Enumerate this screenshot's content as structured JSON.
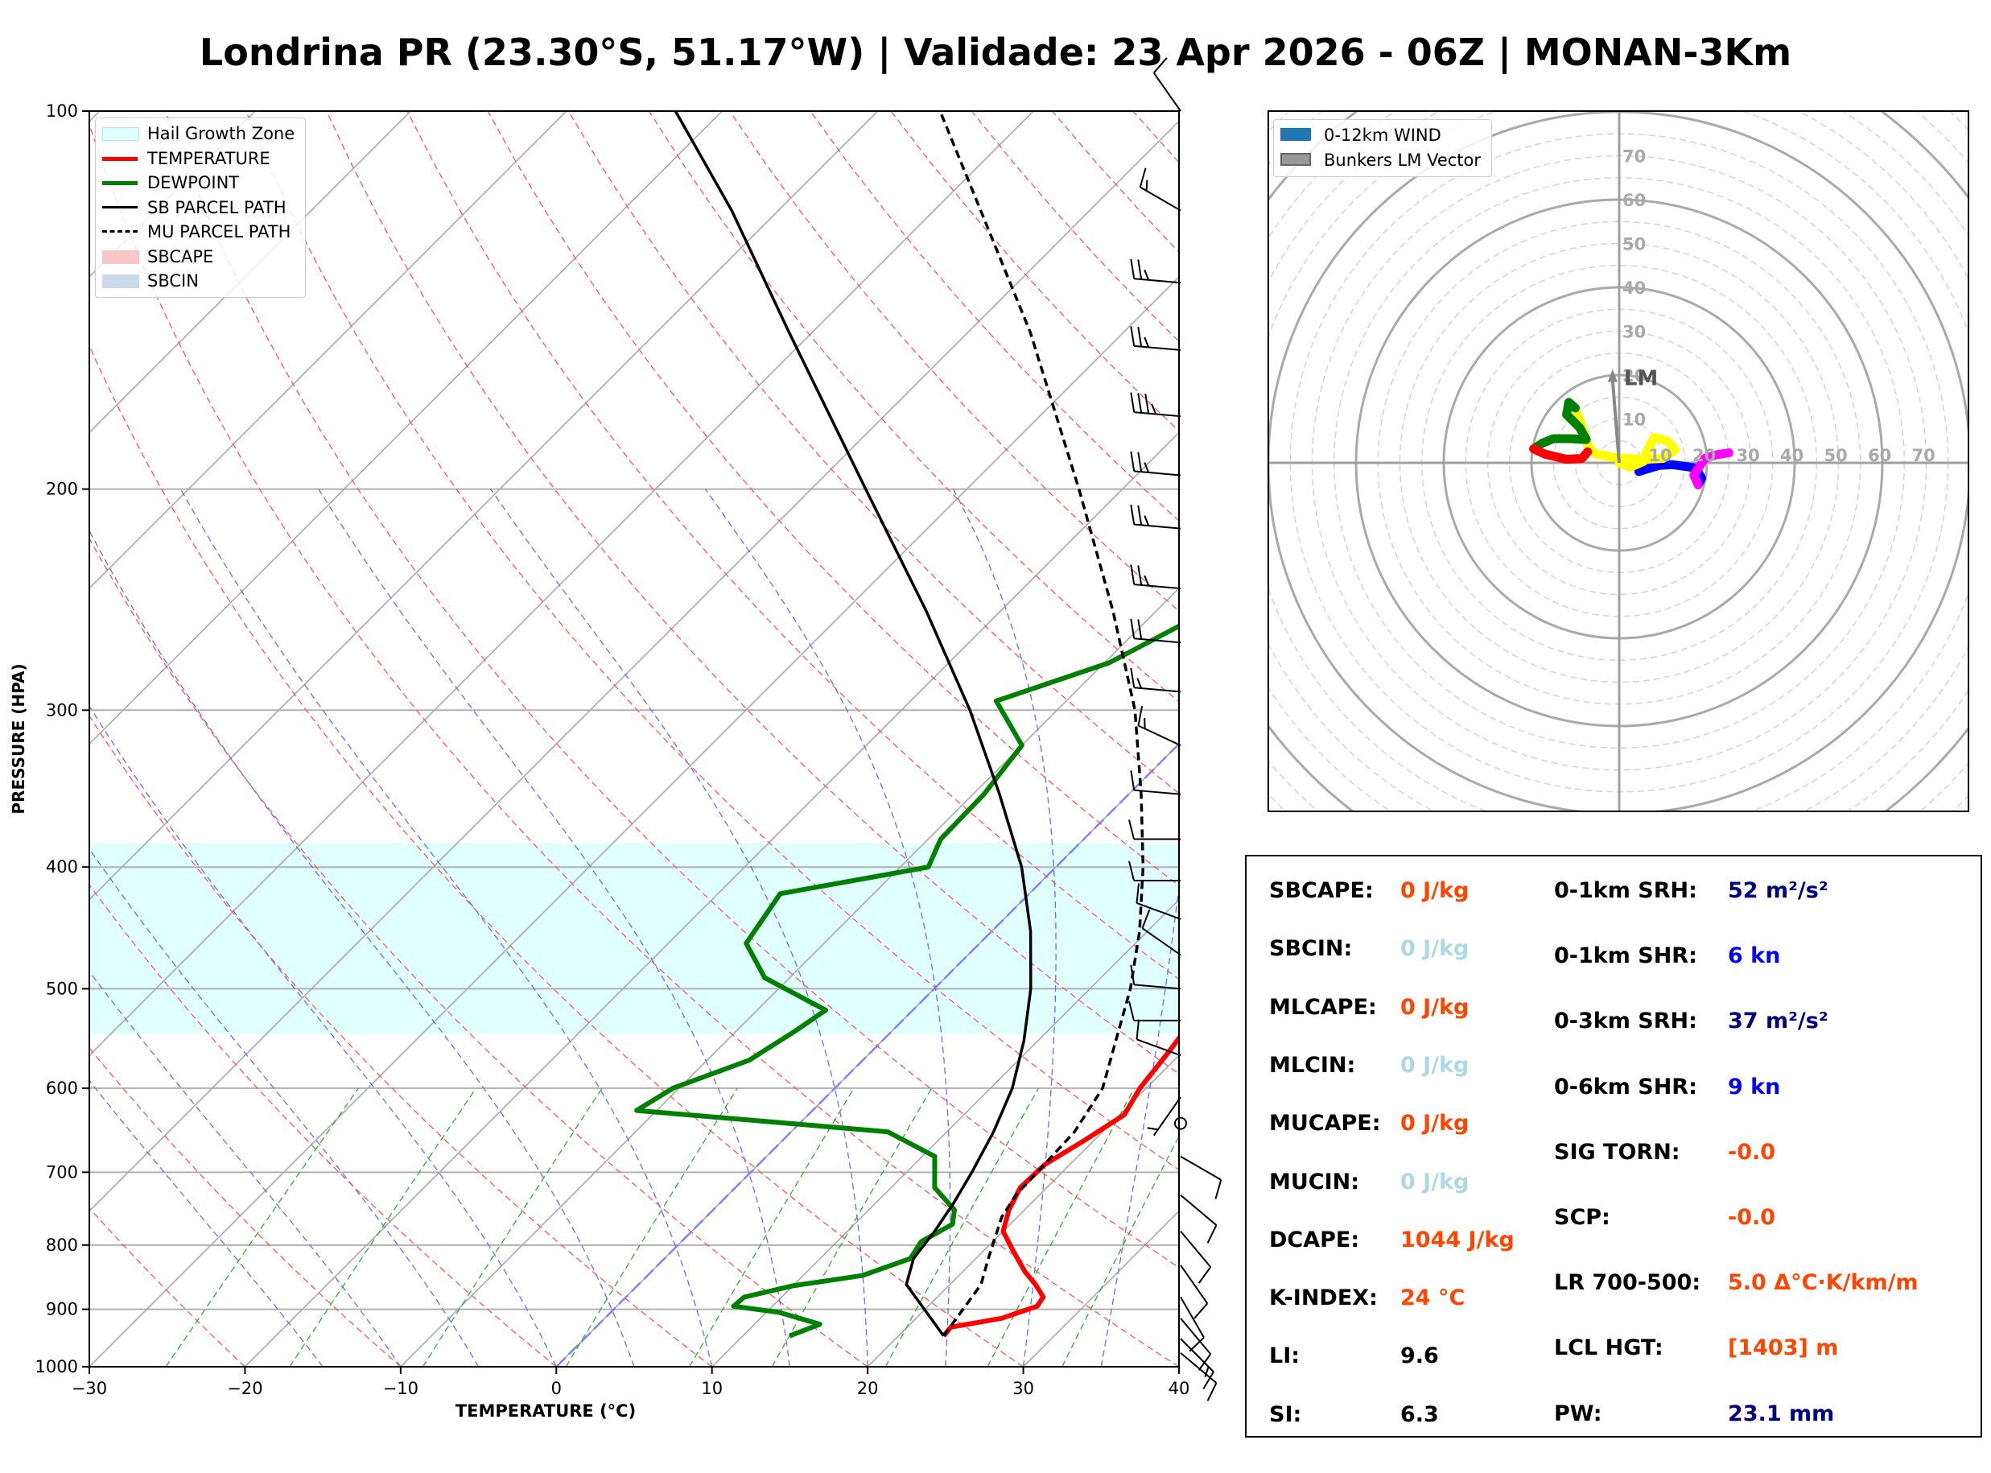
{
  "title": "Londrina PR (23.30°S, 51.17°W) | Validade: 23 Apr 2026 - 06Z | MONAN-3Km",
  "chart_data": [
    {
      "type": "line",
      "subtype": "skew-t log-p sounding",
      "xlabel": "TEMPERATURE (°C)",
      "ylabel": "PRESSURE (HPA)",
      "xlim": [
        -30,
        40
      ],
      "ylim": [
        1000,
        100
      ],
      "y_scale": "log",
      "x_ticks": [
        "−30",
        "−20",
        "−10",
        "0",
        "10",
        "20",
        "30",
        "40"
      ],
      "x_tick_values": [
        -30,
        -20,
        -10,
        0,
        10,
        20,
        30,
        40
      ],
      "y_ticks": [
        "100",
        "200",
        "300",
        "400",
        "500",
        "600",
        "700",
        "800",
        "900",
        "1000"
      ],
      "y_tick_values": [
        100,
        200,
        300,
        400,
        500,
        600,
        700,
        800,
        900,
        1000
      ],
      "grid": true,
      "legend_position": "top-left",
      "legend": [
        {
          "label": "Hail Growth Zone",
          "color": "#e0ffff",
          "style": "patch"
        },
        {
          "label": "TEMPERATURE",
          "color": "#ff0000",
          "style": "solid"
        },
        {
          "label": "DEWPOINT",
          "color": "#008000",
          "style": "solid"
        },
        {
          "label": "SB PARCEL PATH",
          "color": "#000000",
          "style": "solid"
        },
        {
          "label": "MU PARCEL PATH",
          "color": "#000000",
          "style": "dashed"
        },
        {
          "label": "SBCAPE",
          "color": "#f7c6c6",
          "style": "patch"
        },
        {
          "label": "SBCIN",
          "color": "#c9d9ea",
          "style": "patch"
        }
      ],
      "hail_growth_zone_hpa": [
        543,
        383
      ],
      "series": [
        {
          "name": "TEMPERATURE",
          "color": "#ff0000",
          "points": [
            [
              945,
              22.9
            ],
            [
              930,
              22.8
            ],
            [
              915,
              25.5
            ],
            [
              895,
              27.0
            ],
            [
              880,
              26.8
            ],
            [
              860,
              25.5
            ],
            [
              840,
              24.0
            ],
            [
              810,
              22.0
            ],
            [
              780,
              20.0
            ],
            [
              750,
              19.0
            ],
            [
              720,
              18.3
            ],
            [
              690,
              18.4
            ],
            [
              660,
              19.4
            ],
            [
              630,
              20.3
            ],
            [
              600,
              19.6
            ],
            [
              560,
              19.1
            ],
            [
              530,
              18.6
            ],
            [
              500,
              18.5
            ],
            [
              470,
              18.4
            ],
            [
              440,
              17.5
            ],
            [
              410,
              15.4
            ],
            [
              385,
              13.9
            ],
            [
              360,
              12.9
            ],
            [
              330,
              11.7
            ],
            [
              300,
              10.1
            ],
            [
              270,
              8.8
            ],
            [
              240,
              7.0
            ],
            [
              220,
              6.3
            ],
            [
              200,
              5.8
            ],
            [
              185,
              6.0
            ],
            [
              170,
              6.7
            ],
            [
              150,
              7.9
            ],
            [
              135,
              10.2
            ],
            [
              120,
              14.0
            ],
            [
              100,
              21.4
            ]
          ]
        },
        {
          "name": "DEWPOINT",
          "color": "#008000",
          "points": [
            [
              945,
              13.0
            ],
            [
              925,
              14.2
            ],
            [
              905,
              10.8
            ],
            [
              895,
              7.5
            ],
            [
              880,
              7.6
            ],
            [
              862,
              10.0
            ],
            [
              846,
              13.8
            ],
            [
              820,
              15.8
            ],
            [
              795,
              15.4
            ],
            [
              770,
              16.3
            ],
            [
              750,
              15.5
            ],
            [
              720,
              12.8
            ],
            [
              680,
              10.8
            ],
            [
              650,
              6.2
            ],
            [
              625,
              -11.3
            ],
            [
              600,
              -10.4
            ],
            [
              570,
              -7.3
            ],
            [
              540,
              -6.2
            ],
            [
              520,
              -5.6
            ],
            [
              490,
              -11.6
            ],
            [
              460,
              -15.0
            ],
            [
              420,
              -16.0
            ],
            [
              400,
              -8.2
            ],
            [
              380,
              -9.2
            ],
            [
              350,
              -9.3
            ],
            [
              320,
              -10.0
            ],
            [
              295,
              -14.5
            ],
            [
              275,
              -9.7
            ],
            [
              255,
              -7.3
            ],
            [
              240,
              -5.2
            ],
            [
              220,
              -5.8
            ],
            [
              200,
              -5.8
            ],
            [
              180,
              -5.2
            ],
            [
              165,
              -5.8
            ],
            [
              150,
              -4.5
            ],
            [
              140,
              -4.2
            ],
            [
              125,
              -3.7
            ],
            [
              112,
              -3.7
            ],
            [
              100,
              -4.1
            ]
          ]
        },
        {
          "name": "SB PARCEL PATH",
          "color": "#000000",
          "style": "solid",
          "points": [
            [
              945,
              22.9
            ],
            [
              860,
              17.2
            ],
            [
              820,
              16.0
            ],
            [
              780,
              15.6
            ],
            [
              740,
              15.0
            ],
            [
              700,
              14.2
            ],
            [
              650,
              13.0
            ],
            [
              600,
              11.4
            ],
            [
              550,
              9.1
            ],
            [
              500,
              6.2
            ],
            [
              450,
              2.5
            ],
            [
              400,
              -2.2
            ],
            [
              350,
              -8.3
            ],
            [
              300,
              -15.6
            ],
            [
              250,
              -24.8
            ],
            [
              200,
              -36.5
            ],
            [
              150,
              -51.5
            ],
            [
              120,
              -63.0
            ],
            [
              100,
              -73.0
            ]
          ]
        },
        {
          "name": "MU PARCEL PATH",
          "color": "#000000",
          "style": "dashed",
          "points": [
            [
              945,
              22.9
            ],
            [
              860,
              22.0
            ],
            [
              820,
              20.8
            ],
            [
              760,
              19.0
            ],
            [
              730,
              18.5
            ],
            [
              700,
              18.4
            ],
            [
              650,
              18.2
            ],
            [
              600,
              17.2
            ],
            [
              550,
              15.0
            ],
            [
              500,
              12.6
            ],
            [
              450,
              9.5
            ],
            [
              400,
              5.6
            ],
            [
              350,
              0.8
            ],
            [
              300,
              -5.0
            ],
            [
              250,
              -12.8
            ],
            [
              200,
              -22.8
            ],
            [
              150,
              -36.0
            ],
            [
              120,
              -47.0
            ],
            [
              100,
              -56.0
            ]
          ]
        }
      ],
      "wind_barbs": [
        {
          "p": 100,
          "dir": 325,
          "speed": 10
        },
        {
          "p": 120,
          "dir": 300,
          "speed": 15
        },
        {
          "p": 137,
          "dir": 275,
          "speed": 25
        },
        {
          "p": 155,
          "dir": 275,
          "speed": 25
        },
        {
          "p": 175,
          "dir": 275,
          "speed": 35
        },
        {
          "p": 195,
          "dir": 275,
          "speed": 25
        },
        {
          "p": 215,
          "dir": 275,
          "speed": 25
        },
        {
          "p": 240,
          "dir": 275,
          "speed": 25
        },
        {
          "p": 265,
          "dir": 275,
          "speed": 20
        },
        {
          "p": 290,
          "dir": 275,
          "speed": 15
        },
        {
          "p": 320,
          "dir": 295,
          "speed": 15
        },
        {
          "p": 350,
          "dir": 275,
          "speed": 10
        },
        {
          "p": 380,
          "dir": 270,
          "speed": 10
        },
        {
          "p": 410,
          "dir": 270,
          "speed": 10
        },
        {
          "p": 440,
          "dir": 290,
          "speed": 10
        },
        {
          "p": 470,
          "dir": 305,
          "speed": 10
        },
        {
          "p": 500,
          "dir": 275,
          "speed": 10
        },
        {
          "p": 530,
          "dir": 270,
          "speed": 10
        },
        {
          "p": 565,
          "dir": 290,
          "speed": 10
        },
        {
          "p": 610,
          "dir": 215,
          "speed": 5
        },
        {
          "p": 640,
          "dir": 0,
          "speed": 0
        },
        {
          "p": 680,
          "dir": 120,
          "speed": 10
        },
        {
          "p": 730,
          "dir": 130,
          "speed": 10
        },
        {
          "p": 780,
          "dir": 140,
          "speed": 10
        },
        {
          "p": 830,
          "dir": 145,
          "speed": 10
        },
        {
          "p": 880,
          "dir": 150,
          "speed": 10
        },
        {
          "p": 915,
          "dir": 140,
          "speed": 10
        },
        {
          "p": 950,
          "dir": 135,
          "speed": 15
        },
        {
          "p": 975,
          "dir": 130,
          "speed": 10
        }
      ]
    },
    {
      "type": "line",
      "subtype": "hodograph",
      "rmax": 80,
      "ring_labels": [
        "10",
        "20",
        "30",
        "40",
        "50",
        "60",
        "70"
      ],
      "ring_values": [
        10,
        20,
        30,
        40,
        50,
        60,
        70
      ],
      "legend_position": "top-left",
      "legend": [
        {
          "label": "0-12km WIND",
          "color": "#1f77b4"
        },
        {
          "label": "Bunkers LM Vector",
          "color": "#999999"
        }
      ],
      "lm_label": "LM",
      "lm_vector": [
        -1.5,
        21
      ],
      "segments": [
        {
          "color": "#0000ff",
          "points": [
            [
              4.5,
              -2.0
            ],
            [
              6.0,
              -1.5
            ],
            [
              9.0,
              -0.6
            ],
            [
              12.0,
              -0.4
            ],
            [
              15.0,
              -0.8
            ],
            [
              17.5,
              -1.2
            ],
            [
              18.8,
              -3.5
            ],
            [
              18.0,
              -5.0
            ]
          ]
        },
        {
          "color": "#ff00ff",
          "points": [
            [
              18.0,
              -5.0
            ],
            [
              17.0,
              -2.8
            ],
            [
              19.5,
              1.0
            ],
            [
              22.0,
              1.8
            ],
            [
              25.0,
              2.3
            ]
          ]
        },
        {
          "color": "#ffff00",
          "points": [
            [
              0,
              0
            ],
            [
              2.5,
              -1.0
            ],
            [
              5.5,
              0.3
            ],
            [
              6.5,
              3.0
            ],
            [
              8.0,
              5.8
            ],
            [
              11.0,
              5.0
            ],
            [
              12.8,
              3.0
            ],
            [
              10.0,
              1.0
            ],
            [
              6.0,
              0.8
            ],
            [
              -1.0,
              1.2
            ],
            [
              -5.5,
              2.0
            ],
            [
              -7.2,
              4.0
            ],
            [
              -8.0,
              7.0
            ],
            [
              -10.0,
              12.5
            ]
          ]
        },
        {
          "color": "#008000",
          "points": [
            [
              -10.0,
              12.5
            ],
            [
              -11.5,
              13.8
            ],
            [
              -12.0,
              11.0
            ],
            [
              -9.0,
              8.0
            ],
            [
              -7.5,
              5.3
            ],
            [
              -11.0,
              5.5
            ],
            [
              -15.0,
              5.5
            ],
            [
              -17.5,
              4.5
            ],
            [
              -19.5,
              3.2
            ]
          ]
        },
        {
          "color": "#ff0000",
          "points": [
            [
              -19.5,
              3.2
            ],
            [
              -17.0,
              2.0
            ],
            [
              -12.0,
              0.8
            ],
            [
              -8.5,
              1.0
            ],
            [
              -7.2,
              2.5
            ]
          ]
        }
      ]
    }
  ],
  "indices": {
    "left": [
      {
        "label": "SBCAPE:",
        "value": "0 J/kg",
        "color": "#ff4500"
      },
      {
        "label": "SBCIN:",
        "value": "0 J/kg",
        "color": "#add8e6"
      },
      {
        "label": "MLCAPE:",
        "value": "0 J/kg",
        "color": "#ff4500"
      },
      {
        "label": "MLCIN:",
        "value": "0 J/kg",
        "color": "#add8e6"
      },
      {
        "label": "MUCAPE:",
        "value": "0 J/kg",
        "color": "#ff4500"
      },
      {
        "label": "MUCIN:",
        "value": "0 J/kg",
        "color": "#add8e6"
      },
      {
        "label": "DCAPE:",
        "value": "1044 J/kg",
        "color": "#ff4500"
      },
      {
        "label": "K-INDEX:",
        "value": "24 °C",
        "color": "#ff4500"
      },
      {
        "label": "LI:",
        "value": "9.6",
        "color": "#000000"
      },
      {
        "label": "SI:",
        "value": "6.3",
        "color": "#000000"
      }
    ],
    "right": [
      {
        "label": "0-1km SRH:",
        "value": "52 m²/s²",
        "color": "#000080"
      },
      {
        "label": "0-1km SHR:",
        "value": "6 kn",
        "color": "#0000ff"
      },
      {
        "label": "0-3km SRH:",
        "value": "37 m²/s²",
        "color": "#000080"
      },
      {
        "label": "0-6km SHR:",
        "value": "9 kn",
        "color": "#0000ff"
      },
      {
        "label": "SIG TORN:",
        "value": "-0.0",
        "color": "#ff4500"
      },
      {
        "label": "SCP:",
        "value": "-0.0",
        "color": "#ff4500"
      },
      {
        "label": "LR 700-500:",
        "value": "5.0 Δ°C·K/km/m",
        "color": "#ff4500"
      },
      {
        "label": "LCL HGT:",
        "value": "[1403] m",
        "color": "#ff4500"
      },
      {
        "label": "PW:",
        "value": "23.1 mm",
        "color": "#000080"
      }
    ]
  }
}
